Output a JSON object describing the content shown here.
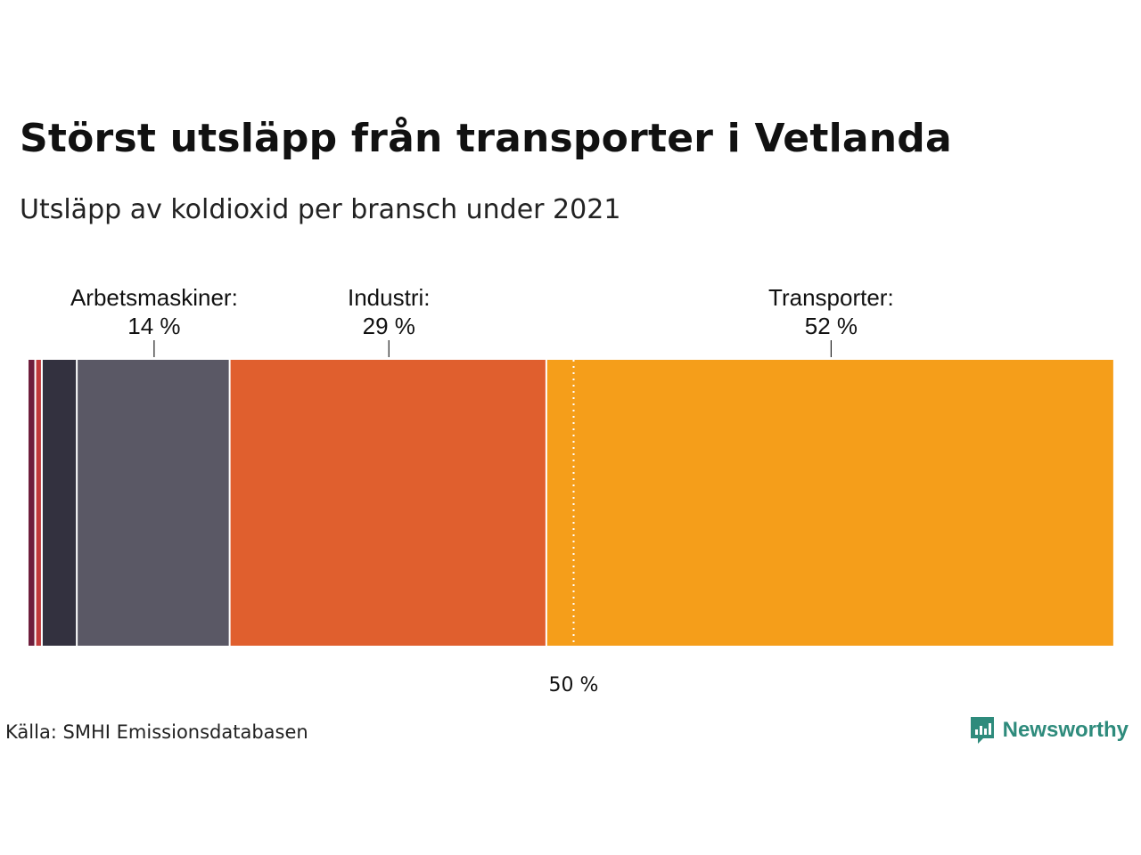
{
  "title": "Störst utsläpp från transporter i Vetlanda",
  "subtitle": "Utsläpp av koldioxid per bransch under 2021",
  "source": "Källa: SMHI Emissionsdatabasen",
  "brand": {
    "name": "Newsworthy",
    "icon": "newsworthy-logo-icon",
    "color": "#2e8b7c"
  },
  "chart_data": {
    "type": "bar",
    "orientation": "horizontal-stacked-100",
    "x_range": [
      0,
      100
    ],
    "categories": [
      "",
      "",
      "",
      "Arbetsmaskiner",
      "Industri",
      "Transporter"
    ],
    "values": [
      0.7,
      0.6,
      3.2,
      14,
      29,
      52
    ],
    "colors": [
      "#6e1e3c",
      "#c0393b",
      "#33313f",
      "#5a5865",
      "#e05f2e",
      "#f59e1a"
    ],
    "labels": [
      {
        "name": "Arbetsmaskiner:",
        "value_label": "14 %",
        "segment": 3
      },
      {
        "name": "Industri:",
        "value_label": "29 %",
        "segment": 4
      },
      {
        "name": "Transporter:",
        "value_label": "52 %",
        "segment": 5
      }
    ],
    "reference_line": {
      "value": 50,
      "label": "50 %",
      "style": "dotted"
    }
  }
}
